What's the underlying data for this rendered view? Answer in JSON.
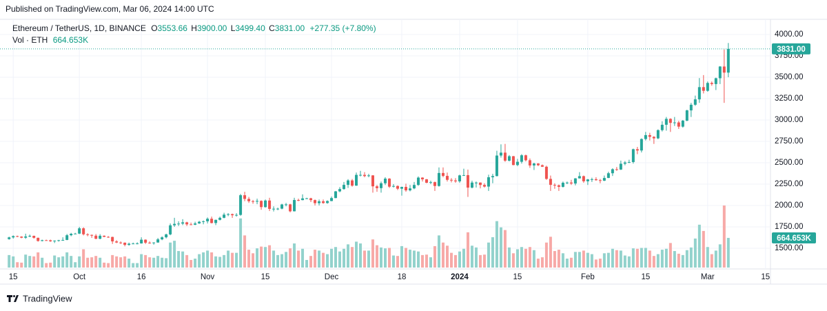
{
  "published": "Published on TradingView.com, Mar 06, 2024 14:00 UTC",
  "footer": "TradingView",
  "chart_data": {
    "type": "candlestick",
    "title": "Ethereum / TetherUS, 1D, BINANCE",
    "legend_keys": [
      "O",
      "H",
      "L",
      "C"
    ],
    "last_labels": {
      "open": "3553.66",
      "high": "3900.00",
      "low": "3499.40",
      "close": "3831.00",
      "change": "+277.35 (+7.80%)"
    },
    "volume_title": "Vol · ETH",
    "volume_last_label": "664.653K",
    "up_color": "#26a69a",
    "down_color": "#ef5350",
    "volume_up_color": "#92d2cc",
    "volume_down_color": "#f7a9a7",
    "grid": true,
    "ylim": [
      1258,
      4177
    ],
    "yticks": [
      {
        "value": 1500,
        "label": "1500.00"
      },
      {
        "value": 1750,
        "label": "1750.00"
      },
      {
        "value": 2000,
        "label": "2000.00"
      },
      {
        "value": 2250,
        "label": "2250.00"
      },
      {
        "value": 2500,
        "label": "2500.00"
      },
      {
        "value": 2750,
        "label": "2750.00"
      },
      {
        "value": 3000,
        "label": "3000.00"
      },
      {
        "value": 3250,
        "label": "3250.00"
      },
      {
        "value": 3500,
        "label": "3500.00"
      },
      {
        "value": 3750,
        "label": "3750.00"
      },
      {
        "value": 4000,
        "label": "4000.00"
      }
    ],
    "xlim": [
      -2.2,
      184.2
    ],
    "xticks": [
      {
        "value": 1,
        "label": "15"
      },
      {
        "value": 17,
        "label": "Oct"
      },
      {
        "value": 32,
        "label": "16"
      },
      {
        "value": 48,
        "label": "Nov"
      },
      {
        "value": 62,
        "label": "15"
      },
      {
        "value": 78,
        "label": "Dec"
      },
      {
        "value": 95,
        "label": "18"
      },
      {
        "value": 109,
        "label": "2024"
      },
      {
        "value": 123,
        "label": "15"
      },
      {
        "value": 140,
        "label": "Feb"
      },
      {
        "value": 154,
        "label": "15"
      },
      {
        "value": 169,
        "label": "Mar"
      },
      {
        "value": 183,
        "label": "15"
      }
    ],
    "ohlc": [
      [
        1607,
        1635,
        1600,
        1627
      ],
      [
        1627,
        1650,
        1613,
        1642
      ],
      [
        1642,
        1647,
        1630,
        1636
      ],
      [
        1636,
        1640,
        1617,
        1623
      ],
      [
        1623,
        1670,
        1610,
        1638
      ],
      [
        1638,
        1660,
        1630,
        1645
      ],
      [
        1645,
        1648,
        1612,
        1622
      ],
      [
        1622,
        1625,
        1577,
        1585
      ],
      [
        1585,
        1600,
        1580,
        1594
      ],
      [
        1594,
        1600,
        1588,
        1593
      ],
      [
        1593,
        1601,
        1575,
        1581
      ],
      [
        1581,
        1592,
        1561,
        1589
      ],
      [
        1589,
        1598,
        1578,
        1594
      ],
      [
        1594,
        1628,
        1587,
        1597
      ],
      [
        1597,
        1667,
        1594,
        1652
      ],
      [
        1652,
        1680,
        1640,
        1669
      ],
      [
        1669,
        1680,
        1665,
        1671
      ],
      [
        1671,
        1750,
        1666,
        1733
      ],
      [
        1733,
        1745,
        1650,
        1663
      ],
      [
        1663,
        1675,
        1640,
        1656
      ],
      [
        1656,
        1660,
        1621,
        1647
      ],
      [
        1647,
        1666,
        1605,
        1611
      ],
      [
        1611,
        1665,
        1605,
        1646
      ],
      [
        1646,
        1650,
        1630,
        1633
      ],
      [
        1633,
        1642,
        1622,
        1632
      ],
      [
        1632,
        1635,
        1550,
        1580
      ],
      [
        1580,
        1594,
        1560,
        1567
      ],
      [
        1567,
        1580,
        1550,
        1565
      ],
      [
        1565,
        1568,
        1522,
        1539
      ],
      [
        1539,
        1566,
        1530,
        1553
      ],
      [
        1553,
        1566,
        1550,
        1555
      ],
      [
        1555,
        1570,
        1546,
        1556
      ],
      [
        1556,
        1628,
        1555,
        1600
      ],
      [
        1600,
        1604,
        1550,
        1565
      ],
      [
        1565,
        1580,
        1553,
        1564
      ],
      [
        1564,
        1570,
        1542,
        1567
      ],
      [
        1567,
        1620,
        1565,
        1604
      ],
      [
        1604,
        1640,
        1594,
        1628
      ],
      [
        1628,
        1670,
        1615,
        1662
      ],
      [
        1662,
        1790,
        1652,
        1768
      ],
      [
        1768,
        1856,
        1750,
        1785
      ],
      [
        1785,
        1815,
        1760,
        1788
      ],
      [
        1788,
        1840,
        1770,
        1803
      ],
      [
        1803,
        1810,
        1760,
        1779
      ],
      [
        1779,
        1800,
        1770,
        1775
      ],
      [
        1775,
        1810,
        1770,
        1790
      ],
      [
        1790,
        1820,
        1785,
        1810
      ],
      [
        1810,
        1825,
        1780,
        1815
      ],
      [
        1815,
        1860,
        1790,
        1845
      ],
      [
        1845,
        1870,
        1790,
        1795
      ],
      [
        1795,
        1835,
        1770,
        1832
      ],
      [
        1832,
        1870,
        1825,
        1856
      ],
      [
        1856,
        1915,
        1850,
        1893
      ],
      [
        1893,
        1910,
        1875,
        1899
      ],
      [
        1899,
        1905,
        1855,
        1886
      ],
      [
        1886,
        1910,
        1870,
        1890
      ],
      [
        1890,
        2135,
        1880,
        2120
      ],
      [
        2120,
        2160,
        2050,
        2077
      ],
      [
        2077,
        2100,
        2030,
        2050
      ],
      [
        2050,
        2065,
        2020,
        2045
      ],
      [
        2045,
        2080,
        2015,
        2054
      ],
      [
        2054,
        2060,
        1950,
        1981
      ],
      [
        1981,
        2070,
        1975,
        2058
      ],
      [
        2058,
        2090,
        1935,
        1960
      ],
      [
        1960,
        1990,
        1930,
        1962
      ],
      [
        1962,
        1975,
        1945,
        1963
      ],
      [
        1963,
        2020,
        1955,
        2012
      ],
      [
        2012,
        2030,
        1990,
        2013
      ],
      [
        2013,
        2020,
        1920,
        1932
      ],
      [
        1932,
        2090,
        1930,
        2064
      ],
      [
        2064,
        2080,
        2050,
        2063
      ],
      [
        2063,
        2130,
        2060,
        2083
      ],
      [
        2083,
        2090,
        2075,
        2084
      ],
      [
        2084,
        2090,
        2040,
        2063
      ],
      [
        2063,
        2070,
        2000,
        2027
      ],
      [
        2027,
        2070,
        2000,
        2049
      ],
      [
        2049,
        2070,
        2020,
        2029
      ],
      [
        2029,
        2060,
        2020,
        2052
      ],
      [
        2052,
        2105,
        2050,
        2087
      ],
      [
        2087,
        2170,
        2085,
        2165
      ],
      [
        2165,
        2215,
        2155,
        2192
      ],
      [
        2192,
        2275,
        2185,
        2241
      ],
      [
        2241,
        2308,
        2205,
        2293
      ],
      [
        2293,
        2310,
        2220,
        2232
      ],
      [
        2232,
        2385,
        2230,
        2358
      ],
      [
        2358,
        2405,
        2340,
        2358
      ],
      [
        2358,
        2390,
        2330,
        2344
      ],
      [
        2344,
        2370,
        2330,
        2352
      ],
      [
        2352,
        2355,
        2150,
        2224
      ],
      [
        2224,
        2240,
        2160,
        2203
      ],
      [
        2203,
        2280,
        2150,
        2260
      ],
      [
        2260,
        2330,
        2240,
        2314
      ],
      [
        2314,
        2320,
        2205,
        2220
      ],
      [
        2220,
        2250,
        2210,
        2228
      ],
      [
        2228,
        2235,
        2180,
        2196
      ],
      [
        2196,
        2220,
        2115,
        2217
      ],
      [
        2217,
        2255,
        2160,
        2177
      ],
      [
        2177,
        2240,
        2165,
        2200
      ],
      [
        2200,
        2275,
        2190,
        2240
      ],
      [
        2240,
        2340,
        2230,
        2326
      ],
      [
        2326,
        2330,
        2280,
        2306
      ],
      [
        2306,
        2310,
        2260,
        2266
      ],
      [
        2266,
        2290,
        2250,
        2273
      ],
      [
        2273,
        2280,
        2170,
        2228
      ],
      [
        2228,
        2445,
        2220,
        2380
      ],
      [
        2380,
        2445,
        2330,
        2346
      ],
      [
        2346,
        2385,
        2280,
        2300
      ],
      [
        2300,
        2320,
        2270,
        2292
      ],
      [
        2292,
        2320,
        2265,
        2282
      ],
      [
        2282,
        2360,
        2265,
        2352
      ],
      [
        2352,
        2430,
        2345,
        2355
      ],
      [
        2355,
        2420,
        2100,
        2209
      ],
      [
        2209,
        2290,
        2200,
        2268
      ],
      [
        2268,
        2280,
        2210,
        2268
      ],
      [
        2268,
        2270,
        2200,
        2240
      ],
      [
        2240,
        2260,
        2210,
        2221
      ],
      [
        2221,
        2360,
        2170,
        2330
      ],
      [
        2330,
        2370,
        2260,
        2344
      ],
      [
        2344,
        2640,
        2340,
        2584
      ],
      [
        2584,
        2715,
        2560,
        2618
      ],
      [
        2618,
        2720,
        2510,
        2524
      ],
      [
        2524,
        2590,
        2515,
        2576
      ],
      [
        2576,
        2580,
        2470,
        2473
      ],
      [
        2473,
        2545,
        2460,
        2511
      ],
      [
        2511,
        2600,
        2490,
        2587
      ],
      [
        2587,
        2595,
        2515,
        2529
      ],
      [
        2529,
        2550,
        2440,
        2468
      ],
      [
        2468,
        2500,
        2415,
        2491
      ],
      [
        2491,
        2495,
        2460,
        2471
      ],
      [
        2471,
        2480,
        2450,
        2453
      ],
      [
        2453,
        2465,
        2300,
        2311
      ],
      [
        2311,
        2350,
        2170,
        2241
      ],
      [
        2241,
        2260,
        2195,
        2236
      ],
      [
        2236,
        2245,
        2170,
        2218
      ],
      [
        2218,
        2280,
        2210,
        2266
      ],
      [
        2266,
        2280,
        2250,
        2268
      ],
      [
        2268,
        2300,
        2240,
        2257
      ],
      [
        2257,
        2320,
        2235,
        2317
      ],
      [
        2317,
        2390,
        2315,
        2343
      ],
      [
        2343,
        2350,
        2265,
        2283
      ],
      [
        2283,
        2310,
        2240,
        2305
      ],
      [
        2305,
        2325,
        2275,
        2307
      ],
      [
        2307,
        2330,
        2290,
        2296
      ],
      [
        2296,
        2310,
        2260,
        2290
      ],
      [
        2290,
        2350,
        2285,
        2322
      ],
      [
        2322,
        2395,
        2320,
        2377
      ],
      [
        2377,
        2435,
        2345,
        2424
      ],
      [
        2424,
        2450,
        2405,
        2420
      ],
      [
        2420,
        2525,
        2415,
        2488
      ],
      [
        2488,
        2520,
        2470,
        2503
      ],
      [
        2503,
        2535,
        2495,
        2508
      ],
      [
        2508,
        2665,
        2490,
        2658
      ],
      [
        2658,
        2685,
        2600,
        2643
      ],
      [
        2643,
        2785,
        2620,
        2777
      ],
      [
        2777,
        2860,
        2760,
        2823
      ],
      [
        2823,
        2850,
        2760,
        2803
      ],
      [
        2803,
        2810,
        2720,
        2785
      ],
      [
        2785,
        2890,
        2775,
        2881
      ],
      [
        2881,
        2985,
        2865,
        2944
      ],
      [
        2944,
        3035,
        2875,
        3013
      ],
      [
        3013,
        3020,
        2860,
        2966
      ],
      [
        2966,
        3035,
        2930,
        2971
      ],
      [
        2971,
        2990,
        2895,
        2922
      ],
      [
        2922,
        3000,
        2910,
        2992
      ],
      [
        2992,
        3120,
        2985,
        3112
      ],
      [
        3112,
        3200,
        3035,
        3178
      ],
      [
        3178,
        3285,
        3165,
        3241
      ],
      [
        3241,
        3490,
        3200,
        3384
      ],
      [
        3384,
        3525,
        3310,
        3341
      ],
      [
        3341,
        3450,
        3330,
        3433
      ],
      [
        3433,
        3450,
        3400,
        3420
      ],
      [
        3420,
        3495,
        3350,
        3488
      ],
      [
        3488,
        3630,
        3420,
        3625
      ],
      [
        3625,
        3825,
        3200,
        3553.66
      ],
      [
        3553.66,
        3900,
        3499.4,
        3831
      ]
    ],
    "volume": [
      280000,
      250000,
      120000,
      110000,
      290000,
      260000,
      250000,
      340000,
      220000,
      100000,
      110000,
      270000,
      230000,
      250000,
      340000,
      260000,
      120000,
      250000,
      410000,
      220000,
      230000,
      260000,
      220000,
      110000,
      100000,
      280000,
      250000,
      230000,
      250000,
      200000,
      100000,
      100000,
      300000,
      280000,
      230000,
      220000,
      260000,
      220000,
      210000,
      560000,
      600000,
      370000,
      360000,
      280000,
      170000,
      200000,
      300000,
      340000,
      380000,
      340000,
      250000,
      240000,
      280000,
      380000,
      330000,
      330000,
      1100000,
      720000,
      400000,
      320000,
      430000,
      470000,
      460000,
      500000,
      380000,
      280000,
      300000,
      350000,
      430000,
      540000,
      380000,
      420000,
      170000,
      260000,
      400000,
      380000,
      330000,
      300000,
      420000,
      460000,
      360000,
      420000,
      520000,
      460000,
      580000,
      540000,
      380000,
      380000,
      630000,
      500000,
      450000,
      430000,
      440000,
      270000,
      260000,
      480000,
      440000,
      400000,
      380000,
      360000,
      280000,
      290000,
      230000,
      480000,
      720000,
      560000,
      490000,
      330000,
      280000,
      360000,
      420000,
      790000,
      490000,
      450000,
      280000,
      290000,
      560000,
      680000,
      1040000,
      900000,
      840000,
      450000,
      320000,
      410000,
      460000,
      420000,
      460000,
      390000,
      200000,
      230000,
      560000,
      690000,
      370000,
      400000,
      320000,
      200000,
      220000,
      350000,
      350000,
      380000,
      330000,
      300000,
      180000,
      200000,
      320000,
      330000,
      420000,
      390000,
      380000,
      270000,
      250000,
      430000,
      420000,
      440000,
      440000,
      380000,
      260000,
      300000,
      400000,
      420000,
      550000,
      370000,
      310000,
      280000,
      390000,
      450000,
      650000,
      960000,
      820000,
      460000,
      300000,
      380000,
      520000,
      1390000,
      664653
    ]
  }
}
